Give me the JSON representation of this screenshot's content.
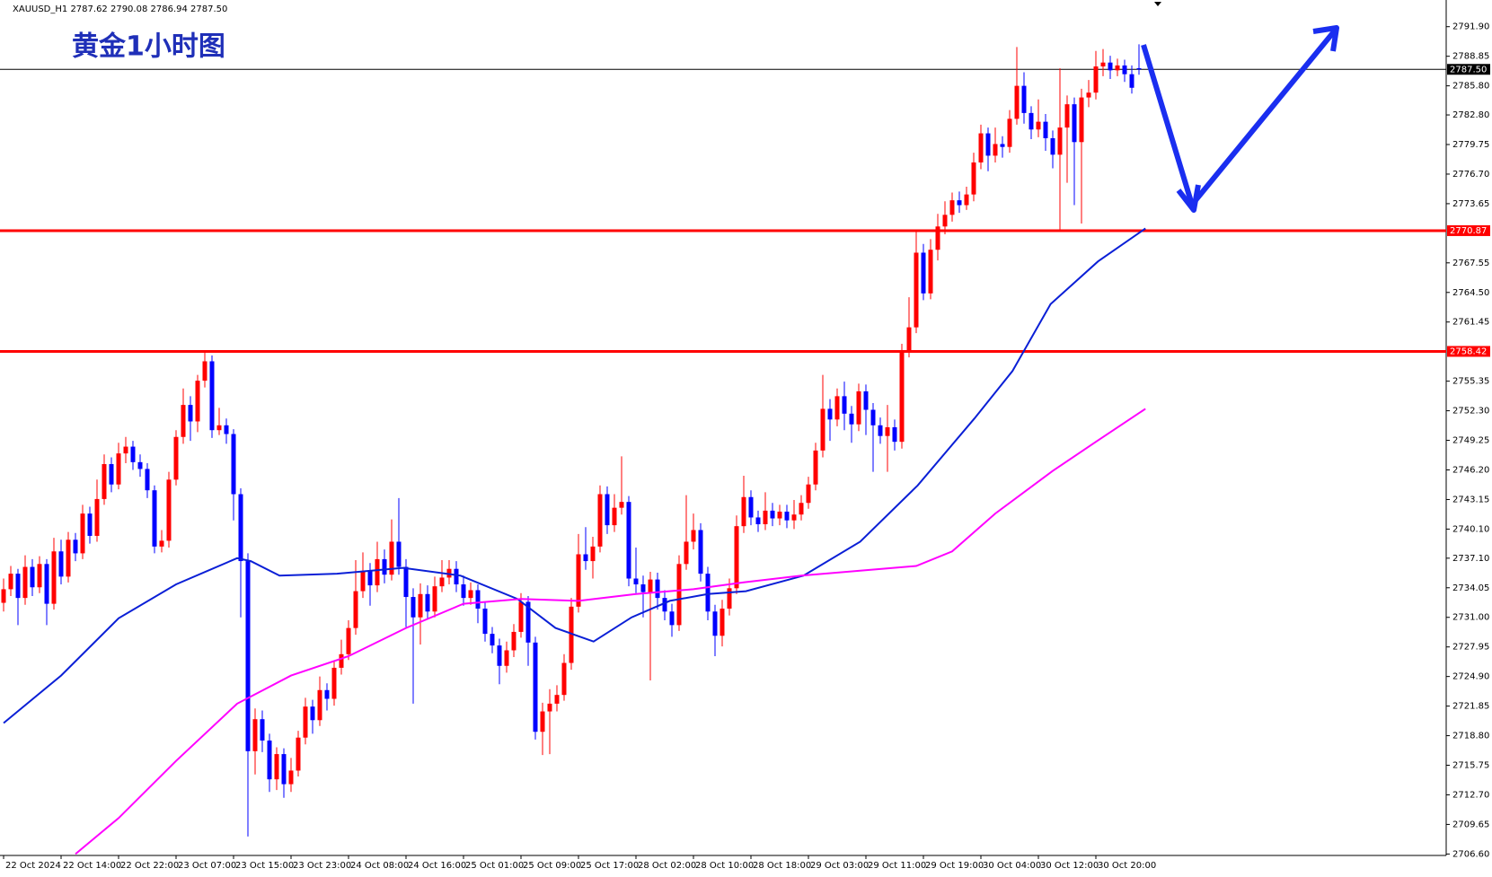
{
  "header": "XAUUSD_H1  2787.62 2790.08 2786.94 2787.50",
  "chart_data": {
    "type": "candlestick",
    "title": "黄金1小时图",
    "categories": [
      "22 Oct 2024",
      null,
      null,
      null,
      null,
      null,
      null,
      null,
      "22 Oct 14:00",
      null,
      null,
      null,
      null,
      null,
      null,
      null,
      "22 Oct 22:00",
      null,
      null,
      null,
      null,
      null,
      null,
      null,
      "23 Oct 07:00",
      null,
      null,
      null,
      null,
      null,
      null,
      null,
      "23 Oct 15:00",
      null,
      null,
      null,
      null,
      null,
      null,
      null,
      "23 Oct 23:00",
      null,
      null,
      null,
      null,
      null,
      null,
      null,
      "24 Oct 08:00",
      null,
      null,
      null,
      null,
      null,
      null,
      null,
      "24 Oct 16:00",
      null,
      null,
      null,
      null,
      null,
      null,
      null,
      "25 Oct 01:00",
      null,
      null,
      null,
      null,
      null,
      null,
      null,
      "25 Oct 09:00",
      null,
      null,
      null,
      null,
      null,
      null,
      null,
      "25 Oct 17:00",
      null,
      null,
      null,
      null,
      null,
      null,
      null,
      "28 Oct 02:00",
      null,
      null,
      null,
      null,
      null,
      null,
      null,
      "28 Oct 10:00",
      null,
      null,
      null,
      null,
      null,
      null,
      null,
      "28 Oct 18:00",
      null,
      null,
      null,
      null,
      null,
      null,
      null,
      "29 Oct 03:00",
      null,
      null,
      null,
      null,
      null,
      null,
      null,
      "29 Oct 11:00",
      null,
      null,
      null,
      null,
      null,
      null,
      null,
      "29 Oct 19:00",
      null,
      null,
      null,
      null,
      null,
      null,
      null,
      "30 Oct 04:00",
      null,
      null,
      null,
      null,
      null,
      null,
      null,
      "30 Oct 12:00",
      null,
      null,
      null,
      null,
      null,
      null,
      null,
      "30 Oct 20:00",
      null,
      null,
      null,
      null,
      null,
      null
    ],
    "open": [
      2732.5,
      2733.9,
      2735.5,
      2733.0,
      2736.2,
      2734.1,
      2736.5,
      2732.4,
      2737.8,
      2735.2,
      2739.0,
      2737.6,
      2741.7,
      2739.4,
      2743.2,
      2746.8,
      2744.7,
      2747.9,
      2748.6,
      2747.0,
      2746.3,
      2744.1,
      2738.3,
      2738.9,
      2745.2,
      2749.6,
      2752.9,
      2751.2,
      2755.4,
      2757.4,
      2750.3,
      2750.8,
      2749.9,
      2743.7,
      2736.8,
      2717.2,
      2720.5,
      2718.3,
      2714.3,
      2716.9,
      2713.8,
      2715.2,
      2718.6,
      2721.8,
      2720.4,
      2723.5,
      2722.6,
      2725.8,
      2727.2,
      2729.9,
      2733.7,
      2735.8,
      2734.3,
      2737.0,
      2735.4,
      2738.8,
      2736.2,
      2733.1,
      2731.0,
      2733.4,
      2731.6,
      2734.2,
      2735.1,
      2736.0,
      2734.4,
      2733.0,
      2733.8,
      2731.9,
      2729.3,
      2728.1,
      2726.0,
      2727.6,
      2729.5,
      2732.6,
      2728.4,
      2719.2,
      2721.3,
      2722.1,
      2723.0,
      2726.3,
      2732.1,
      2737.5,
      2736.8,
      2738.3,
      2743.7,
      2740.5,
      2742.3,
      2742.9,
      2735.0,
      2734.4,
      2733.6,
      2734.9,
      2733.0,
      2731.6,
      2730.2,
      2736.5,
      2738.8,
      2740.0,
      2735.5,
      2731.6,
      2729.1,
      2731.9,
      2734.0,
      2740.4,
      2743.4,
      2741.3,
      2740.6,
      2742.0,
      2741.2,
      2741.9,
      2741.0,
      2741.6,
      2742.8,
      2744.7,
      2748.2,
      2752.5,
      2751.4,
      2753.8,
      2752.0,
      2750.9,
      2754.3,
      2752.4,
      2750.8,
      2749.7,
      2750.6,
      2749.1,
      2758.5,
      2760.9,
      2768.6,
      2764.4,
      2768.9,
      2771.3,
      2772.5,
      2774.0,
      2773.5,
      2774.6,
      2777.9,
      2780.9,
      2778.6,
      2779.8,
      2779.5,
      2782.4,
      2785.8,
      2783.0,
      2781.3,
      2782.1,
      2780.4,
      2778.7,
      2781.5,
      2783.9,
      2780.0,
      2784.6,
      2785.1,
      2787.8,
      2788.2,
      2787.4,
      2787.9,
      2787.0,
      2787.62
    ],
    "high": [
      2735.0,
      2736.3,
      2736.0,
      2737.4,
      2737.0,
      2737.3,
      2737.0,
      2739.2,
      2739.0,
      2739.8,
      2739.7,
      2742.6,
      2742.4,
      2745.2,
      2747.8,
      2747.5,
      2749.0,
      2749.6,
      2749.2,
      2747.8,
      2746.9,
      2744.6,
      2740.0,
      2746.0,
      2750.3,
      2754.6,
      2753.8,
      2756.0,
      2758.4,
      2758.0,
      2752.6,
      2751.5,
      2750.4,
      2744.3,
      2737.6,
      2721.6,
      2721.4,
      2719.0,
      2717.6,
      2717.5,
      2716.5,
      2719.3,
      2722.7,
      2722.5,
      2724.9,
      2724.2,
      2726.5,
      2728.7,
      2730.7,
      2736.9,
      2737.7,
      2736.6,
      2738.8,
      2738.0,
      2741.1,
      2743.3,
      2737.0,
      2734.0,
      2734.5,
      2734.3,
      2735.2,
      2736.9,
      2736.9,
      2736.8,
      2735.3,
      2734.6,
      2734.4,
      2732.5,
      2730.0,
      2728.8,
      2728.5,
      2730.3,
      2733.5,
      2733.2,
      2729.0,
      2722.2,
      2723.6,
      2724.0,
      2727.2,
      2733.0,
      2739.6,
      2740.3,
      2739.3,
      2744.6,
      2744.5,
      2743.7,
      2747.6,
      2743.5,
      2738.2,
      2735.3,
      2735.7,
      2735.6,
      2733.8,
      2732.4,
      2737.4,
      2743.6,
      2741.7,
      2740.7,
      2736.2,
      2732.3,
      2732.8,
      2735.0,
      2741.5,
      2745.6,
      2744.1,
      2742.0,
      2743.9,
      2742.8,
      2742.6,
      2742.6,
      2743.1,
      2743.6,
      2745.5,
      2749.0,
      2756.0,
      2753.5,
      2754.6,
      2755.3,
      2752.8,
      2755.1,
      2755.0,
      2753.1,
      2751.6,
      2752.9,
      2751.4,
      2759.2,
      2764.0,
      2770.9,
      2769.5,
      2770.0,
      2772.6,
      2773.9,
      2774.8,
      2774.9,
      2775.4,
      2778.9,
      2781.8,
      2781.5,
      2781.5,
      2780.6,
      2783.3,
      2789.8,
      2787.2,
      2783.7,
      2784.4,
      2782.9,
      2781.2,
      2787.6,
      2784.8,
      2784.6,
      2785.5,
      2786.4,
      2789.4,
      2789.6,
      2788.9,
      2788.6,
      2788.5,
      2787.9,
      2790.08
    ],
    "low": [
      2731.6,
      2733.2,
      2730.2,
      2732.3,
      2733.2,
      2733.5,
      2730.2,
      2731.8,
      2734.4,
      2734.6,
      2736.8,
      2737.0,
      2738.6,
      2738.8,
      2742.6,
      2743.9,
      2744.2,
      2746.9,
      2746.2,
      2745.5,
      2743.3,
      2737.6,
      2737.7,
      2738.2,
      2744.6,
      2748.9,
      2749.2,
      2750.1,
      2754.7,
      2749.5,
      2749.8,
      2748.9,
      2741.0,
      2731.0,
      2708.4,
      2714.8,
      2717.1,
      2713.0,
      2713.2,
      2712.4,
      2713.0,
      2714.6,
      2717.9,
      2719.0,
      2719.8,
      2721.4,
      2721.9,
      2725.1,
      2726.6,
      2729.2,
      2733.0,
      2732.2,
      2733.6,
      2734.5,
      2734.8,
      2735.4,
      2730.0,
      2722.1,
      2728.2,
      2730.8,
      2731.0,
      2733.6,
      2734.4,
      2733.6,
      2732.2,
      2732.3,
      2730.4,
      2728.5,
      2727.3,
      2724.1,
      2725.3,
      2726.9,
      2728.9,
      2726.0,
      2718.4,
      2716.8,
      2716.9,
      2721.3,
      2722.4,
      2725.6,
      2731.5,
      2735.9,
      2735.0,
      2737.7,
      2739.6,
      2739.8,
      2741.6,
      2734.2,
      2733.5,
      2731.0,
      2724.5,
      2731.8,
      2730.7,
      2729.0,
      2729.6,
      2735.9,
      2738.0,
      2734.7,
      2730.7,
      2727.0,
      2728.0,
      2731.2,
      2733.4,
      2739.7,
      2740.5,
      2739.8,
      2740.0,
      2740.4,
      2740.5,
      2740.2,
      2740.1,
      2741.0,
      2742.2,
      2744.1,
      2747.5,
      2749.2,
      2750.7,
      2750.3,
      2749.0,
      2750.2,
      2749.8,
      2746.0,
      2748.9,
      2746.0,
      2748.2,
      2748.4,
      2757.8,
      2760.3,
      2763.7,
      2763.8,
      2767.8,
      2770.5,
      2771.8,
      2772.7,
      2773.0,
      2773.9,
      2777.2,
      2777.0,
      2777.9,
      2778.4,
      2778.9,
      2781.8,
      2781.9,
      2780.3,
      2780.5,
      2779.1,
      2777.3,
      2770.9,
      2775.8,
      2773.5,
      2771.6,
      2783.6,
      2784.4,
      2786.8,
      2786.5,
      2786.8,
      2786.2,
      2785.0,
      2786.94
    ],
    "close": [
      2733.9,
      2735.5,
      2733.0,
      2736.2,
      2734.1,
      2736.5,
      2732.4,
      2737.8,
      2735.2,
      2739.0,
      2737.6,
      2741.7,
      2739.4,
      2743.2,
      2746.8,
      2744.7,
      2747.9,
      2748.6,
      2747.0,
      2746.3,
      2744.1,
      2738.3,
      2738.9,
      2745.2,
      2749.6,
      2752.9,
      2751.2,
      2755.4,
      2757.4,
      2750.3,
      2750.8,
      2749.9,
      2743.7,
      2736.8,
      2717.2,
      2720.5,
      2718.3,
      2714.3,
      2716.9,
      2713.8,
      2715.2,
      2718.6,
      2721.8,
      2720.4,
      2723.5,
      2722.6,
      2725.8,
      2727.2,
      2729.9,
      2733.7,
      2735.8,
      2734.3,
      2737.0,
      2735.4,
      2738.8,
      2736.2,
      2733.1,
      2731.0,
      2733.4,
      2731.6,
      2734.2,
      2735.1,
      2736.0,
      2734.4,
      2733.0,
      2733.8,
      2731.9,
      2729.3,
      2728.1,
      2726.0,
      2727.6,
      2729.5,
      2732.6,
      2728.4,
      2719.2,
      2721.3,
      2722.1,
      2723.0,
      2726.3,
      2732.1,
      2737.5,
      2736.8,
      2738.3,
      2743.7,
      2740.5,
      2742.3,
      2742.9,
      2735.0,
      2734.4,
      2733.6,
      2734.9,
      2733.0,
      2731.6,
      2730.2,
      2736.5,
      2738.8,
      2740.0,
      2735.5,
      2731.6,
      2729.1,
      2731.9,
      2734.0,
      2740.4,
      2743.4,
      2741.3,
      2740.6,
      2742.0,
      2741.2,
      2741.9,
      2741.0,
      2741.6,
      2742.8,
      2744.7,
      2748.2,
      2752.5,
      2751.4,
      2753.8,
      2752.0,
      2750.9,
      2754.3,
      2752.4,
      2750.8,
      2749.7,
      2750.6,
      2749.1,
      2758.5,
      2760.9,
      2768.6,
      2764.4,
      2768.9,
      2771.3,
      2772.5,
      2774.0,
      2773.5,
      2774.6,
      2777.9,
      2780.9,
      2778.6,
      2779.8,
      2779.5,
      2782.4,
      2785.8,
      2783.0,
      2781.3,
      2782.1,
      2780.4,
      2778.7,
      2781.5,
      2783.9,
      2780.0,
      2784.6,
      2785.1,
      2787.8,
      2788.2,
      2787.4,
      2787.9,
      2787.0,
      2785.6,
      2787.5
    ],
    "up_color": "#ff0000",
    "down_color": "#0000ff",
    "indicators": [
      {
        "color": "#0a1fd6",
        "x": [
          0,
          8,
          16,
          24,
          32.5,
          34.4,
          38.4,
          46.4,
          55.6,
          63.6,
          71.5,
          76.8,
          82.1,
          87.4,
          92.7,
          98,
          103.3,
          111.3,
          119.2,
          127.2,
          135.1,
          140.4,
          145.7,
          152.3,
          158.9
        ],
        "values": [
          2720.1,
          2725.0,
          2730.9,
          2734.4,
          2737.1,
          2736.8,
          2735.3,
          2735.5,
          2736.1,
          2735.3,
          2732.9,
          2729.9,
          2728.5,
          2731.0,
          2732.7,
          2733.4,
          2733.7,
          2735.3,
          2738.8,
          2744.6,
          2751.5,
          2756.4,
          2763.3,
          2767.7,
          2771.1
        ]
      },
      {
        "color": "#ff00ff",
        "x": [
          10,
          16,
          24,
          32.5,
          40,
          48,
          56,
          64,
          72,
          80,
          88,
          96,
          103,
          111,
          119,
          127,
          132,
          138,
          146,
          152,
          158.9
        ],
        "values": [
          2706.6,
          2710.3,
          2716.2,
          2722.1,
          2725.0,
          2727.0,
          2729.9,
          2732.4,
          2732.9,
          2732.7,
          2733.4,
          2733.9,
          2734.6,
          2735.3,
          2735.8,
          2736.3,
          2737.8,
          2741.7,
          2746.1,
          2749.1,
          2752.5
        ]
      }
    ],
    "hlines": [
      {
        "value": 2787.5,
        "label": "2787.50",
        "color": "#000000"
      },
      {
        "value": 2770.87,
        "color": "#ff0000"
      },
      {
        "value": 2758.42,
        "color": "#ff0000"
      }
    ],
    "ylim": [
      2706.45,
      2794.65
    ],
    "yticks": [
      {
        "value": 2791.9,
        "label": "2791.90"
      },
      2788.85,
      {
        "value": 2785.8,
        "label": "2785.80"
      },
      {
        "value": 2782.8,
        "label": "2782.80"
      },
      2779.75,
      {
        "value": 2776.7,
        "label": "2776.70"
      },
      2773.65,
      2767.55,
      {
        "value": 2764.5,
        "label": "2764.50"
      },
      2761.45,
      2755.35,
      {
        "value": 2752.3,
        "label": "2752.30"
      },
      2749.25,
      {
        "value": 2746.2,
        "label": "2746.20"
      },
      2743.15,
      {
        "value": 2740.1,
        "label": "2740.10"
      },
      {
        "value": 2737.1,
        "label": "2737.10"
      },
      2734.05,
      {
        "value": 2731,
        "label": "2731.00"
      },
      2727.95,
      {
        "value": 2724.9,
        "label": "2724.90"
      },
      2721.85,
      {
        "value": 2718.8,
        "label": "2718.80"
      },
      2715.75,
      {
        "value": 2712.7,
        "label": "2712.70"
      },
      2709.65,
      {
        "value": 2706.6,
        "label": "2706.60"
      }
    ]
  }
}
